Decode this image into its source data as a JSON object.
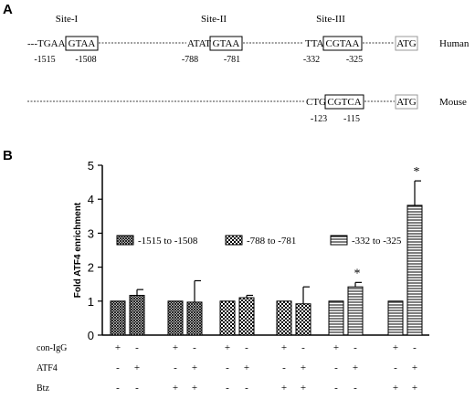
{
  "panels": {
    "a": "A",
    "b": "B"
  },
  "diagram": {
    "sites": [
      {
        "name": "Site-I",
        "seq_left": "---TGAA",
        "box": "GTAA",
        "pos_left": "-1515",
        "pos_right": "-1508"
      },
      {
        "name": "Site-II",
        "seq_left": "ATAT",
        "box": "GTAA",
        "pos_left": "-788",
        "pos_right": "-781"
      },
      {
        "name": "Site-III",
        "seq_left": "TTA",
        "box": "CGTAA",
        "pos_left": "-332",
        "pos_right": "-325"
      }
    ],
    "human_label": "Human",
    "mouse_label": "Mouse",
    "mouse_seq_left": "CTG",
    "mouse_box": "CGTCA",
    "mouse_pos_left": "-123",
    "mouse_pos_right": "-115",
    "atg": "ATG"
  },
  "chart_data": {
    "type": "bar",
    "xlabel": "",
    "ylabel": "Fold ATF4 enrichment",
    "ylim": [
      0,
      5
    ],
    "yticks": [
      0,
      1,
      2,
      3,
      4,
      5
    ],
    "legend": [
      {
        "name": "-1515 to -1508",
        "pattern": "crosshatch"
      },
      {
        "name": "-788 to -781",
        "pattern": "checker"
      },
      {
        "name": "-332 to -325",
        "pattern": "horizontal"
      }
    ],
    "groups": [
      {
        "pattern": "crosshatch",
        "values": [
          1.0,
          1.17
        ],
        "errors": [
          0,
          0.17
        ]
      },
      {
        "pattern": "crosshatch",
        "values": [
          1.0,
          0.97
        ],
        "errors": [
          0,
          0.63
        ]
      },
      {
        "pattern": "checker",
        "values": [
          1.0,
          1.1
        ],
        "errors": [
          0,
          0.07
        ]
      },
      {
        "pattern": "checker",
        "values": [
          1.0,
          0.92
        ],
        "errors": [
          0,
          0.5
        ]
      },
      {
        "pattern": "horizontal",
        "values": [
          1.0,
          1.42
        ],
        "errors": [
          0,
          0.13
        ],
        "significant": [
          false,
          true
        ]
      },
      {
        "pattern": "horizontal",
        "values": [
          1.0,
          3.82
        ],
        "errors": [
          0,
          0.72
        ],
        "significant": [
          false,
          true
        ]
      }
    ],
    "significance_mark": "*",
    "conditions": [
      {
        "label": "con-IgG",
        "signs": [
          "+",
          "-",
          "+",
          "-",
          "+",
          "-",
          "+",
          "-",
          "+",
          "-",
          "+",
          "-"
        ]
      },
      {
        "label": "ATF4",
        "signs": [
          "-",
          "+",
          "-",
          "+",
          "-",
          "+",
          "-",
          "+",
          "-",
          "+",
          "-",
          "+"
        ]
      },
      {
        "label": "Btz",
        "signs": [
          "-",
          "-",
          "+",
          "+",
          "-",
          "-",
          "+",
          "+",
          "-",
          "-",
          "+",
          "+"
        ]
      }
    ]
  },
  "colors": {
    "ink": "#000000",
    "background": "#ffffff"
  }
}
